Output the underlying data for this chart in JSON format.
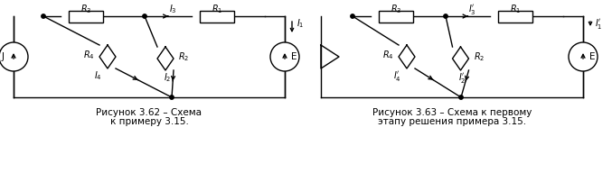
{
  "fig_width": 6.77,
  "fig_height": 1.92,
  "dpi": 100,
  "bg_color": "#ffffff",
  "line_color": "#000000",
  "line_width": 1.0,
  "caption1_line1": "Рисунок 3.62 – Схема",
  "caption1_line2": "к примеру 3.15.",
  "caption2_line1": "Рисунок 3.63 – Схема к первому",
  "caption2_line2": "этапу решения примера 3.15.",
  "font_size_caption": 7.5
}
